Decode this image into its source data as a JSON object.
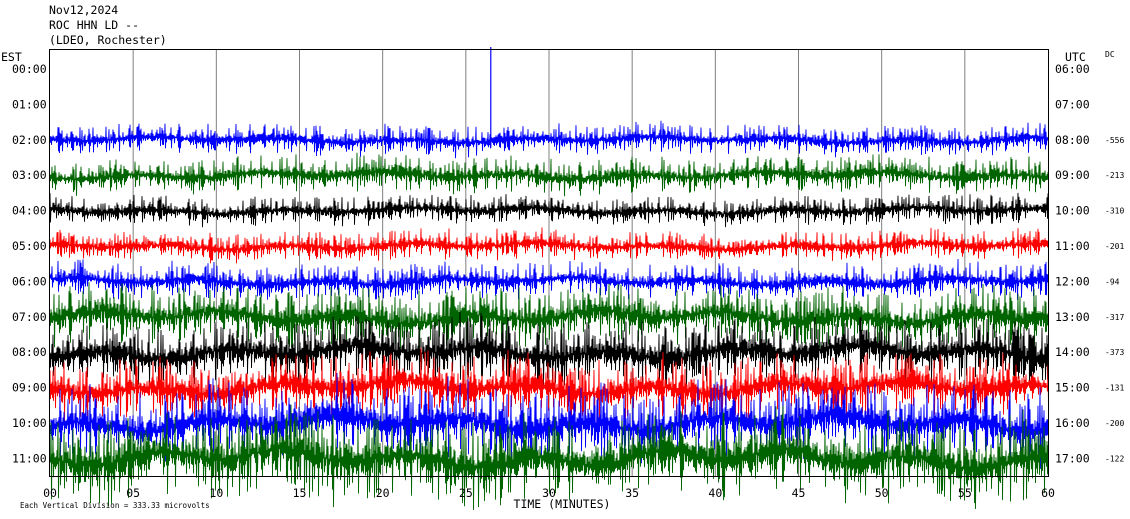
{
  "header": {
    "date": "Nov12,2024",
    "station": "ROC HHN LD --",
    "network": "(LDEO, Rochester)"
  },
  "chart_data": {
    "type": "line",
    "left_axis_label": "EST",
    "right_axis_label": "UTC",
    "dc_label": "DC",
    "xlabel": "TIME (MINUTES)",
    "xlim": [
      0,
      60
    ],
    "x_ticks": [
      "00",
      "05",
      "10",
      "15",
      "20",
      "25",
      "30",
      "35",
      "40",
      "45",
      "50",
      "55",
      "60"
    ],
    "footer_note": "Each Vertical Division =  333.33 microvolts",
    "rows": [
      {
        "est": "00:00",
        "utc": "06:00",
        "dc": "",
        "color": "",
        "trace": false
      },
      {
        "est": "01:00",
        "utc": "07:00",
        "dc": "",
        "color": "",
        "trace": false
      },
      {
        "est": "02:00",
        "utc": "08:00",
        "dc": "-556",
        "color": "#0000ff",
        "trace": true,
        "amp": 5
      },
      {
        "est": "03:00",
        "utc": "09:00",
        "dc": "-213",
        "color": "#006400",
        "trace": true,
        "amp": 6
      },
      {
        "est": "04:00",
        "utc": "10:00",
        "dc": "-310",
        "color": "#000000",
        "trace": true,
        "amp": 5
      },
      {
        "est": "05:00",
        "utc": "11:00",
        "dc": "-201",
        "color": "#ff0000",
        "trace": true,
        "amp": 5
      },
      {
        "est": "06:00",
        "utc": "12:00",
        "dc": "-94",
        "color": "#0000ff",
        "trace": true,
        "amp": 6
      },
      {
        "est": "07:00",
        "utc": "13:00",
        "dc": "-317",
        "color": "#006400",
        "trace": true,
        "amp": 10
      },
      {
        "est": "08:00",
        "utc": "14:00",
        "dc": "-373",
        "color": "#000000",
        "trace": true,
        "amp": 11
      },
      {
        "est": "09:00",
        "utc": "15:00",
        "dc": "-131",
        "color": "#ff0000",
        "trace": true,
        "amp": 11
      },
      {
        "est": "10:00",
        "utc": "16:00",
        "dc": "-200",
        "color": "#0000ff",
        "trace": true,
        "amp": 13
      },
      {
        "est": "11:00",
        "utc": "17:00",
        "dc": "-122",
        "color": "#006400",
        "trace": true,
        "amp": 15
      }
    ]
  }
}
